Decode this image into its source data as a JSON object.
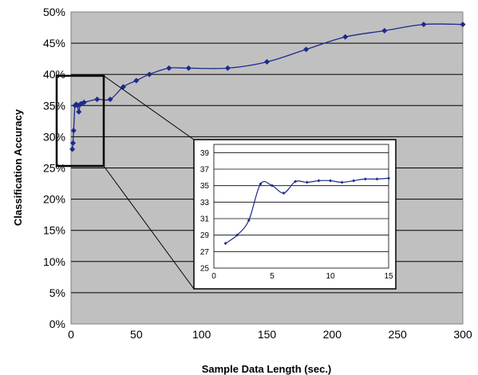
{
  "chart_data": [
    {
      "type": "line",
      "title": "",
      "xlabel": "Sample Data Length (sec.)",
      "ylabel": "Classification Accuracy",
      "xlim": [
        0,
        300
      ],
      "ylim": [
        0,
        50
      ],
      "x_ticks": [
        "0",
        "50",
        "100",
        "150",
        "200",
        "250",
        "300"
      ],
      "y_ticks": [
        "0%",
        "5%",
        "10%",
        "15%",
        "20%",
        "25%",
        "30%",
        "35%",
        "40%",
        "45%",
        "50%"
      ],
      "grid": "horizontal",
      "series_color": "#1c2a8c",
      "plot_background": "#c0c0c0",
      "x": [
        1,
        1.5,
        2,
        3,
        4,
        5,
        6,
        7,
        8,
        10,
        20,
        30,
        40,
        50,
        60,
        75,
        90,
        120,
        150,
        180,
        210,
        240,
        270,
        300
      ],
      "y": [
        28,
        29,
        31,
        35,
        35.2,
        35,
        34,
        35.2,
        35.3,
        35.5,
        36,
        36,
        38,
        39,
        40,
        41,
        41,
        41,
        42,
        44,
        46,
        47,
        48,
        48
      ]
    },
    {
      "type": "line",
      "title": "",
      "xlabel": "",
      "ylabel": "",
      "xlim": [
        0,
        15
      ],
      "ylim": [
        25,
        40
      ],
      "x_ticks": [
        "0",
        "5",
        "10",
        "15"
      ],
      "y_ticks": [
        "25",
        "27",
        "29",
        "31",
        "33",
        "35",
        "37",
        "39"
      ],
      "grid": "horizontal",
      "series_color": "#1c2a8c",
      "x": [
        1,
        2,
        3,
        4,
        5,
        6,
        7,
        8,
        9,
        10,
        11,
        12,
        13,
        14,
        15
      ],
      "y": [
        28,
        29,
        30.8,
        35.2,
        35,
        34.1,
        35.5,
        35.4,
        35.6,
        35.6,
        35.4,
        35.6,
        35.8,
        35.8,
        35.9
      ]
    }
  ]
}
